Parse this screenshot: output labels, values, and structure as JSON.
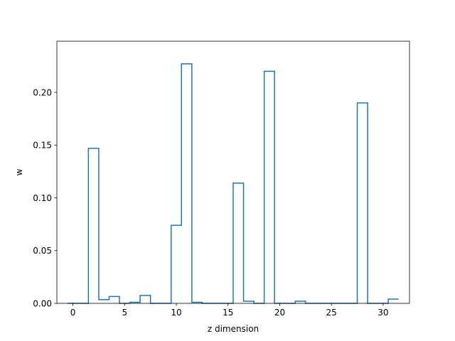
{
  "chart_data": {
    "type": "step",
    "title": "",
    "xlabel": "z dimension",
    "ylabel": "w",
    "xlim": [
      -1.55,
      32.55
    ],
    "ylim": [
      0,
      0.2485
    ],
    "x_ticks": [
      0,
      5,
      10,
      15,
      20,
      25,
      30
    ],
    "y_ticks": [
      0.0,
      0.05,
      0.1,
      0.15,
      0.2
    ],
    "x_tick_labels": [
      "0",
      "5",
      "10",
      "15",
      "20",
      "25",
      "30"
    ],
    "y_tick_labels": [
      "0.00",
      "0.05",
      "0.10",
      "0.15",
      "0.20"
    ],
    "line_color": "#1f77b4",
    "grid": false,
    "x": [
      0,
      1,
      2,
      3,
      4,
      5,
      6,
      7,
      8,
      9,
      10,
      11,
      12,
      13,
      14,
      15,
      16,
      17,
      18,
      19,
      20,
      21,
      22,
      23,
      24,
      25,
      26,
      27,
      28,
      29,
      30,
      31
    ],
    "values": [
      0.0,
      0.0,
      0.147,
      0.0035,
      0.0065,
      0.0,
      0.001,
      0.0075,
      0.0,
      0.0,
      0.074,
      0.227,
      0.001,
      0.0,
      0.0,
      0.0,
      0.114,
      0.002,
      0.0,
      0.22,
      0.0,
      0.0,
      0.002,
      0.0,
      0.0,
      0.0,
      0.0,
      0.0,
      0.19,
      0.0,
      0.0,
      0.004
    ]
  }
}
